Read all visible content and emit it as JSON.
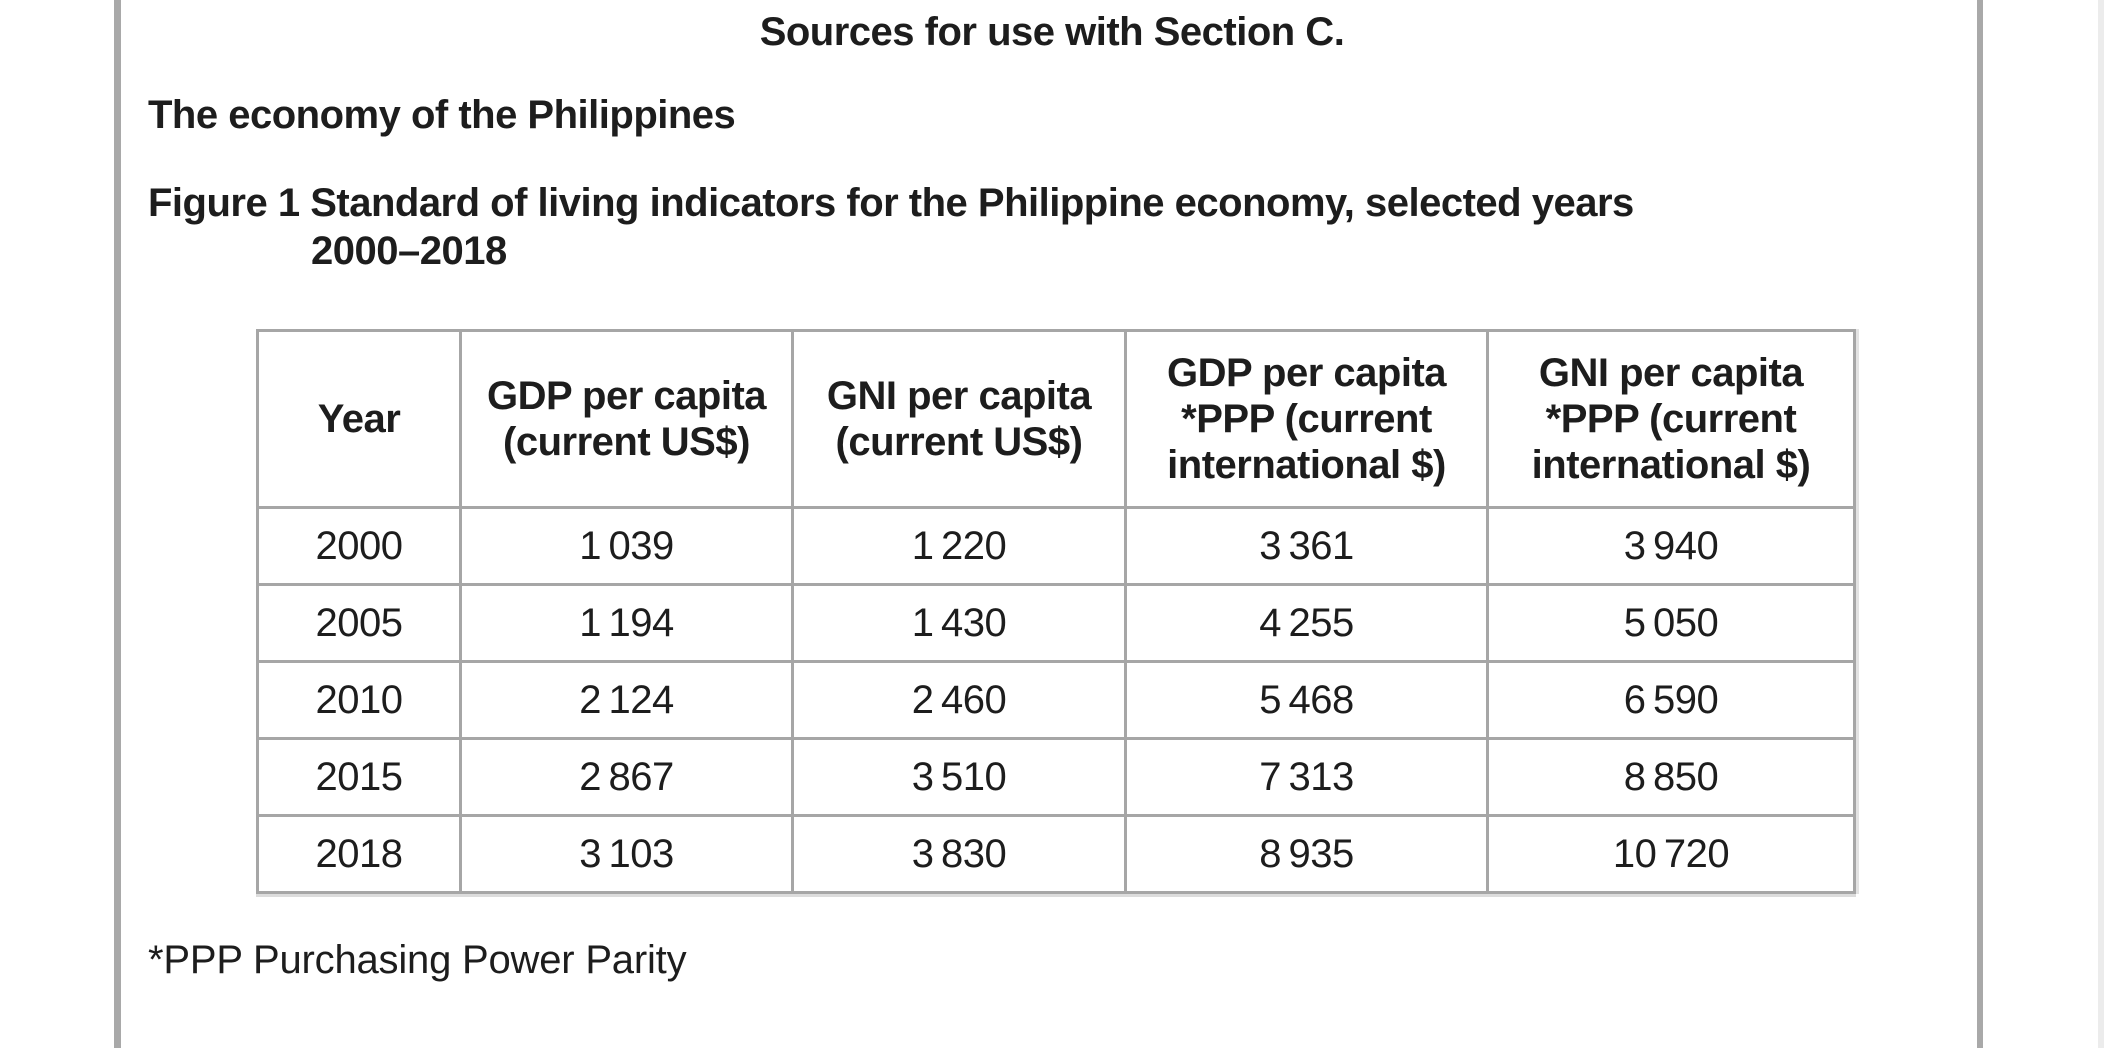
{
  "page": {
    "section_title": "Sources for use with Section C.",
    "topic_heading": "The economy of the Philippines",
    "figure_caption_line1": "Figure 1 Standard of living indicators for the Philippine economy, selected years",
    "figure_caption_line2": "2000–2018",
    "footnote": "*PPP Purchasing Power Parity"
  },
  "table": {
    "headers": [
      "Year",
      "GDP per capita\n(current US$)",
      "GNI per capita\n(current US$)",
      "GDP per capita\n*PPP (current\ninternational $)",
      "GNI per capita\n*PPP (current\ninternational $)"
    ],
    "rows": [
      [
        "2000",
        "1 039",
        "1 220",
        "3 361",
        "3 940"
      ],
      [
        "2005",
        "1 194",
        "1 430",
        "4 255",
        "5 050"
      ],
      [
        "2010",
        "2 124",
        "2 460",
        "5 468",
        "6 590"
      ],
      [
        "2015",
        "2 867",
        "3 510",
        "7 313",
        "8 850"
      ],
      [
        "2018",
        "3 103",
        "3 830",
        "8 935",
        "10 720"
      ]
    ]
  },
  "colors": {
    "text": "#1d1d1d",
    "table_border": "#a6a6a6",
    "table_outer_border": "#9b9b9b",
    "page_rule": "#a9a9a9",
    "page_rule_faint": "#ececec"
  },
  "chart_data": {
    "type": "table",
    "title": "Figure 1 Standard of living indicators for the Philippine economy, selected years 2000–2018",
    "columns": [
      "Year",
      "GDP per capita (current US$)",
      "GNI per capita (current US$)",
      "GDP per capita *PPP (current international $)",
      "GNI per capita *PPP (current international $)"
    ],
    "rows": [
      [
        2000,
        1039,
        1220,
        3361,
        3940
      ],
      [
        2005,
        1194,
        1430,
        4255,
        5050
      ],
      [
        2010,
        2124,
        2460,
        5468,
        6590
      ],
      [
        2015,
        2867,
        3510,
        7313,
        8850
      ],
      [
        2018,
        3103,
        3830,
        8935,
        10720
      ]
    ],
    "footnote": "*PPP Purchasing Power Parity"
  }
}
